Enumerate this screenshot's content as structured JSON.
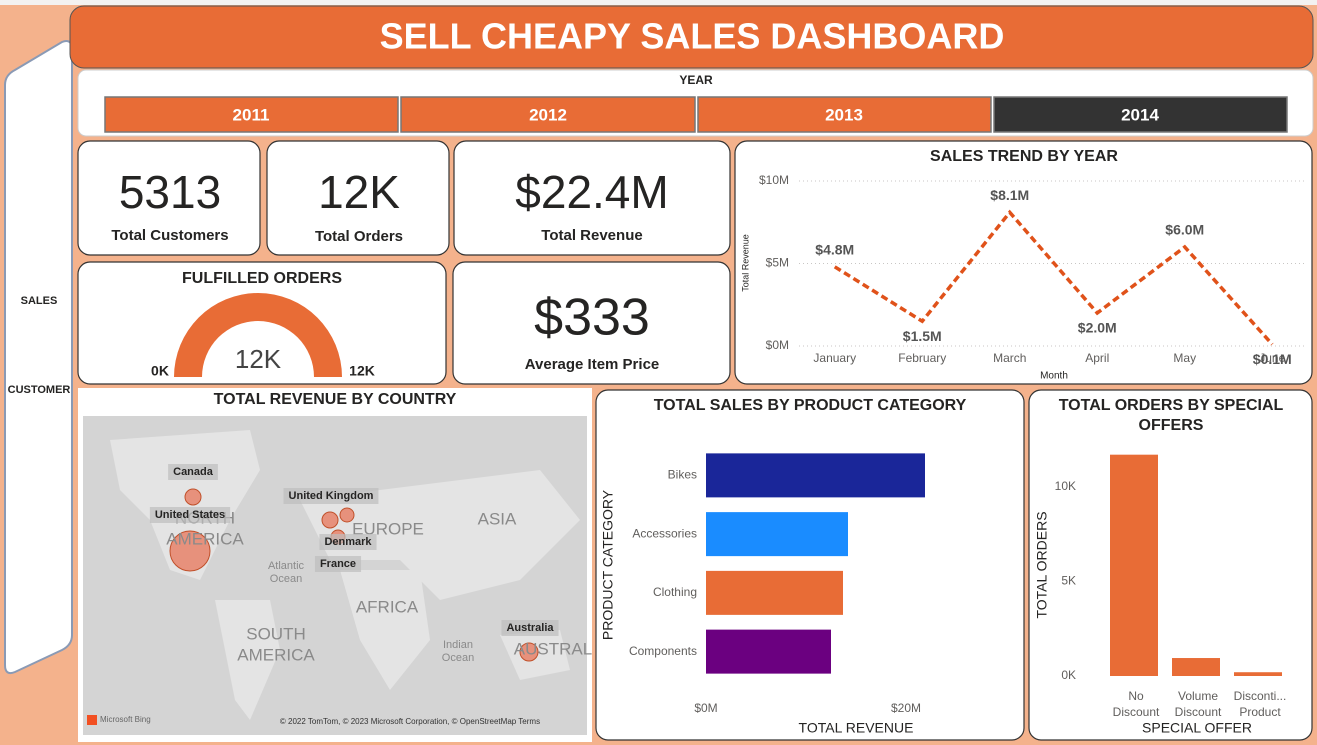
{
  "header": {
    "title": "SELL CHEAPY SALES DASHBOARD"
  },
  "nav": {
    "items": [
      "SALES",
      "CUSTOMER"
    ]
  },
  "slicer": {
    "title": "YEAR",
    "options": [
      "2011",
      "2012",
      "2013",
      "2014"
    ]
  },
  "kpis": [
    {
      "value": "5313",
      "label": "Total Customers"
    },
    {
      "value": "12K",
      "label": "Total Orders"
    },
    {
      "value": "$22.4M",
      "label": "Total Revenue"
    },
    {
      "value": "$333",
      "label": "Average Item Price"
    }
  ],
  "gauge": {
    "title": "FULFILLED ORDERS",
    "value": "12K",
    "min": "0K",
    "max": "12K"
  },
  "map": {
    "title": "TOTAL REVENUE BY COUNTRY",
    "countries": [
      "Canada",
      "United States",
      "United Kingdom",
      "Denmark",
      "France",
      "Australia"
    ],
    "regions": [
      "NORTH",
      "AMERICA",
      "EUROPE",
      "ASIA",
      "AFRICA",
      "SOUTH",
      "AMERICA",
      "AUSTRAL",
      "Atlantic",
      "Ocean",
      "Indian",
      "Ocean"
    ],
    "brand": "Microsoft Bing",
    "attribution": "© 2022 TomTom, © 2023 Microsoft Corporation, © OpenStreetMap  Terms"
  },
  "chart_data": [
    {
      "type": "line",
      "title": "SALES TREND BY YEAR",
      "x_label": "Month",
      "y_label": "Total Revenue",
      "categories": [
        "January",
        "February",
        "March",
        "April",
        "May",
        "June"
      ],
      "series": [
        {
          "name": "Total Revenue",
          "color": "#e0521a",
          "values": [
            4800000,
            1500000,
            8100000,
            2000000,
            6000000,
            100000
          ],
          "value_labels": [
            "$4.8M",
            "$1.5M",
            "$8.1M",
            "$2.0M",
            "$6.0M",
            "$0.1M"
          ]
        }
      ],
      "ylim": [
        0,
        10000000
      ],
      "yticks": [
        {
          "value": 0,
          "label": "$0M"
        },
        {
          "value": 5000000,
          "label": "$5M"
        },
        {
          "value": 10000000,
          "label": "$10M"
        }
      ],
      "grid": true
    },
    {
      "type": "bar",
      "orientation": "horizontal",
      "title": "TOTAL SALES BY PRODUCT CATEGORY",
      "x_label": "TOTAL REVENUE",
      "y_label": "PRODUCT CATEGORY",
      "categories": [
        "Bikes",
        "Accessories",
        "Clothing",
        "Components"
      ],
      "values": [
        21900000,
        14200000,
        13700000,
        12500000
      ],
      "colors": [
        "#1a2699",
        "#1a8cff",
        "#e86c36",
        "#6b0080"
      ],
      "xlim": [
        0,
        23000000
      ],
      "xticks": [
        {
          "value": 0,
          "label": "$0M"
        },
        {
          "value": 20000000,
          "label": "$20M"
        }
      ]
    },
    {
      "type": "bar",
      "orientation": "vertical",
      "title": "TOTAL ORDERS BY SPECIAL OFFERS",
      "x_label": "SPECIAL OFFER",
      "y_label": "TOTAL ORDERS",
      "categories": [
        "No Discount",
        "Volume Discount",
        "Disconti... Product"
      ],
      "values": [
        11700,
        950,
        200
      ],
      "color": "#e86c36",
      "ylim": [
        0,
        12000
      ],
      "yticks": [
        {
          "value": 0,
          "label": "0K"
        },
        {
          "value": 5000,
          "label": "5K"
        },
        {
          "value": 10000,
          "label": "10K"
        }
      ]
    }
  ]
}
